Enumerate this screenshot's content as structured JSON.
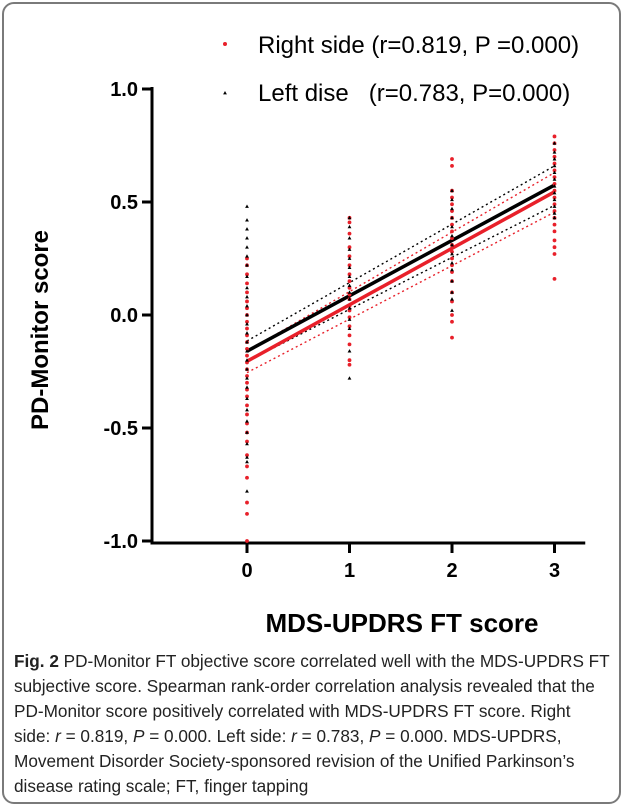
{
  "chart_data": {
    "type": "scatter",
    "xlabel": "MDS-UPDRS FT score",
    "ylabel": "PD-Monitor score",
    "xlim": [
      -1,
      3.3
    ],
    "ylim": [
      -1.05,
      1.0
    ],
    "xticks": [
      0,
      1,
      2,
      3
    ],
    "yticks": [
      -1.0,
      -0.5,
      0.0,
      0.5,
      1.0
    ],
    "ytick_labels": [
      "-1.0",
      "-0.5",
      "0.0",
      "0.5",
      "1.0"
    ],
    "grid": false,
    "legend_position": "top-right",
    "series": [
      {
        "name": "Right side (r=0.819, P =0.000)",
        "color": "#e8202a",
        "marker": "dot",
        "points": [
          [
            0,
            0.25
          ],
          [
            0,
            0.22
          ],
          [
            0,
            0.18
          ],
          [
            0,
            0.14
          ],
          [
            0,
            0.1
          ],
          [
            0,
            0.06
          ],
          [
            0,
            0.03
          ],
          [
            0,
            0.0
          ],
          [
            0,
            -0.03
          ],
          [
            0,
            -0.06
          ],
          [
            0,
            -0.09
          ],
          [
            0,
            -0.12
          ],
          [
            0,
            -0.15
          ],
          [
            0,
            -0.18
          ],
          [
            0,
            -0.21
          ],
          [
            0,
            -0.24
          ],
          [
            0,
            -0.27
          ],
          [
            0,
            -0.3
          ],
          [
            0,
            -0.33
          ],
          [
            0,
            -0.36
          ],
          [
            0,
            -0.4
          ],
          [
            0,
            -0.44
          ],
          [
            0,
            -0.48
          ],
          [
            0,
            -0.52
          ],
          [
            0,
            -0.56
          ],
          [
            0,
            -0.62
          ],
          [
            0,
            -0.67
          ],
          [
            0,
            -0.72
          ],
          [
            0,
            -0.83
          ],
          [
            0,
            -0.88
          ],
          [
            0,
            -1.0
          ],
          [
            1,
            0.43
          ],
          [
            1,
            0.41
          ],
          [
            1,
            0.36
          ],
          [
            1,
            0.3
          ],
          [
            1,
            0.26
          ],
          [
            1,
            0.22
          ],
          [
            1,
            0.18
          ],
          [
            1,
            0.15
          ],
          [
            1,
            0.12
          ],
          [
            1,
            0.09
          ],
          [
            1,
            0.07
          ],
          [
            1,
            0.04
          ],
          [
            1,
            0.02
          ],
          [
            1,
            -0.01
          ],
          [
            1,
            -0.05
          ],
          [
            1,
            -0.09
          ],
          [
            1,
            -0.13
          ],
          [
            1,
            -0.2
          ],
          [
            1,
            -0.22
          ],
          [
            2,
            0.69
          ],
          [
            2,
            0.66
          ],
          [
            2,
            0.55
          ],
          [
            2,
            0.52
          ],
          [
            2,
            0.49
          ],
          [
            2,
            0.46
          ],
          [
            2,
            0.43
          ],
          [
            2,
            0.4
          ],
          [
            2,
            0.37
          ],
          [
            2,
            0.34
          ],
          [
            2,
            0.31
          ],
          [
            2,
            0.28
          ],
          [
            2,
            0.25
          ],
          [
            2,
            0.22
          ],
          [
            2,
            0.19
          ],
          [
            2,
            0.15
          ],
          [
            2,
            0.1
          ],
          [
            2,
            0.06
          ],
          [
            2,
            0.0
          ],
          [
            2,
            -0.03
          ],
          [
            2,
            -0.1
          ],
          [
            3,
            0.79
          ],
          [
            3,
            0.76
          ],
          [
            3,
            0.73
          ],
          [
            3,
            0.7
          ],
          [
            3,
            0.67
          ],
          [
            3,
            0.64
          ],
          [
            3,
            0.61
          ],
          [
            3,
            0.58
          ],
          [
            3,
            0.55
          ],
          [
            3,
            0.52
          ],
          [
            3,
            0.49
          ],
          [
            3,
            0.46
          ],
          [
            3,
            0.43
          ],
          [
            3,
            0.4
          ],
          [
            3,
            0.37
          ],
          [
            3,
            0.33
          ],
          [
            3,
            0.3
          ],
          [
            3,
            0.27
          ],
          [
            3,
            0.16
          ]
        ],
        "fit": {
          "x": [
            0,
            3
          ],
          "y": [
            -0.205,
            0.545
          ]
        },
        "ci_lower": {
          "x": [
            0,
            3
          ],
          "y": [
            -0.255,
            0.455
          ]
        },
        "ci_upper": {
          "x": [
            0,
            3
          ],
          "y": [
            -0.16,
            0.63
          ]
        }
      },
      {
        "name": "Left dise   (r=0.783, P=0.000)",
        "color": "#000000",
        "marker": "triangle",
        "points": [
          [
            0,
            0.48
          ],
          [
            0,
            0.42
          ],
          [
            0,
            0.38
          ],
          [
            0,
            0.34
          ],
          [
            0,
            0.3
          ],
          [
            0,
            0.26
          ],
          [
            0,
            0.22
          ],
          [
            0,
            0.17
          ],
          [
            0,
            0.12
          ],
          [
            0,
            0.08
          ],
          [
            0,
            0.04
          ],
          [
            0,
            0.0
          ],
          [
            0,
            -0.04
          ],
          [
            0,
            -0.08
          ],
          [
            0,
            -0.12
          ],
          [
            0,
            -0.16
          ],
          [
            0,
            -0.2
          ],
          [
            0,
            -0.24
          ],
          [
            0,
            -0.28
          ],
          [
            0,
            -0.32
          ],
          [
            0,
            -0.37
          ],
          [
            0,
            -0.42
          ],
          [
            0,
            -0.47
          ],
          [
            0,
            -0.52
          ],
          [
            0,
            -0.57
          ],
          [
            0,
            -0.63
          ],
          [
            0,
            -0.65
          ],
          [
            0,
            -0.78
          ],
          [
            1,
            0.43
          ],
          [
            1,
            0.39
          ],
          [
            1,
            0.34
          ],
          [
            1,
            0.29
          ],
          [
            1,
            0.25
          ],
          [
            1,
            0.21
          ],
          [
            1,
            0.17
          ],
          [
            1,
            0.13
          ],
          [
            1,
            0.1
          ],
          [
            1,
            0.07
          ],
          [
            1,
            0.03
          ],
          [
            1,
            -0.02
          ],
          [
            1,
            -0.06
          ],
          [
            1,
            -0.16
          ],
          [
            1,
            -0.28
          ],
          [
            2,
            0.55
          ],
          [
            2,
            0.51
          ],
          [
            2,
            0.47
          ],
          [
            2,
            0.43
          ],
          [
            2,
            0.39
          ],
          [
            2,
            0.35
          ],
          [
            2,
            0.31
          ],
          [
            2,
            0.27
          ],
          [
            2,
            0.23
          ],
          [
            2,
            0.2
          ],
          [
            2,
            0.15
          ],
          [
            2,
            0.1
          ],
          [
            2,
            0.07
          ],
          [
            2,
            0.02
          ],
          [
            3,
            0.76
          ],
          [
            3,
            0.72
          ],
          [
            3,
            0.69
          ],
          [
            3,
            0.66
          ],
          [
            3,
            0.63
          ],
          [
            3,
            0.6
          ],
          [
            3,
            0.57
          ],
          [
            3,
            0.54
          ],
          [
            3,
            0.51
          ],
          [
            3,
            0.48
          ],
          [
            3,
            0.45
          ],
          [
            3,
            0.43
          ]
        ],
        "fit": {
          "x": [
            0,
            3
          ],
          "y": [
            -0.16,
            0.575
          ]
        },
        "ci_lower": {
          "x": [
            0,
            3
          ],
          "y": [
            -0.205,
            0.485
          ]
        },
        "ci_upper": {
          "x": [
            0,
            3
          ],
          "y": [
            -0.115,
            0.66
          ]
        }
      }
    ]
  },
  "caption": {
    "label": "Fig. 2",
    "text": " PD-Monitor FT objective score correlated well with the MDS-UPDRS FT subjective score. Spearman rank-order correlation analysis revealed that the PD-Monitor score positively correlated with MDS-UPDRS FT score. Right side: ",
    "r_sym": "r",
    "r_right": " = 0.819, ",
    "p_sym": "P",
    "p_right": " = 0.000. Left side: ",
    "r_left": " = 0.783, ",
    "p_left": " = 0.000. MDS-UPDRS, Movement Disorder Society-sponsored revision of the Unified Parkinson’s disease rating scale; FT, finger tapping"
  }
}
